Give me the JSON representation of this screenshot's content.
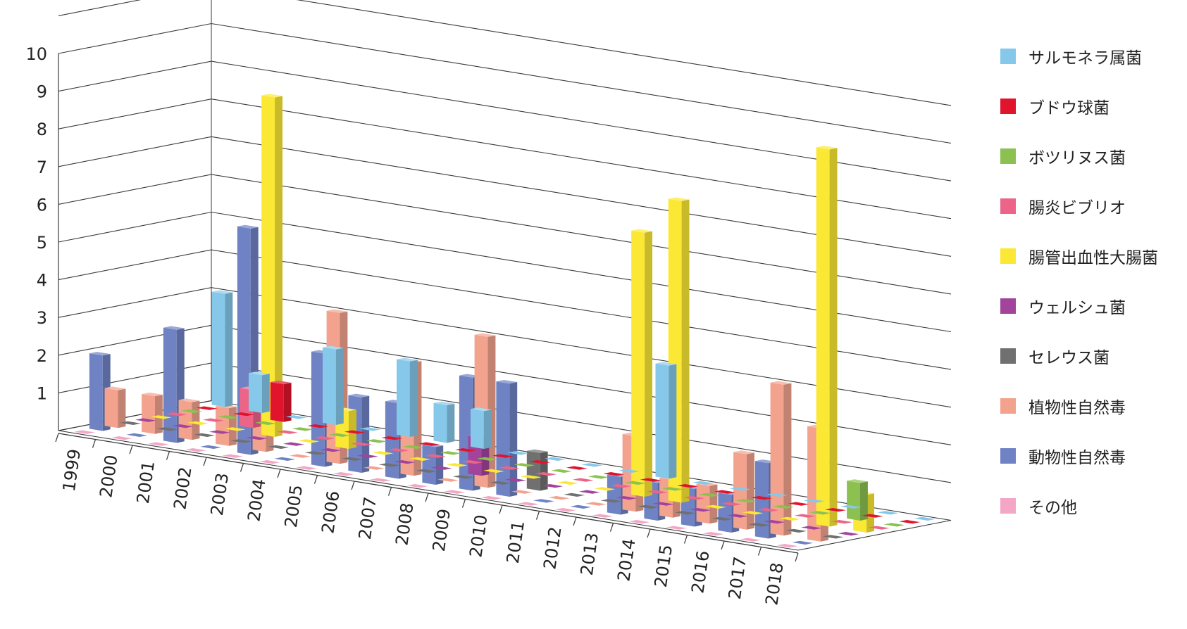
{
  "chart_data": {
    "type": "bar",
    "subtype": "3d-grouped-bar",
    "title": "",
    "xlabel": "",
    "ylabel": "",
    "ylim": [
      0,
      10
    ],
    "y_ticks": [
      "1",
      "2",
      "3",
      "4",
      "5",
      "6",
      "7",
      "8",
      "9",
      "10"
    ],
    "grid": true,
    "legend_position": "right",
    "categories": [
      "1999",
      "2000",
      "2001",
      "2002",
      "2003",
      "2004",
      "2005",
      "2006",
      "2007",
      "2008",
      "2009",
      "2010",
      "2011",
      "2012",
      "2013",
      "2014",
      "2015",
      "2016",
      "2017",
      "2018"
    ],
    "series": [
      {
        "name": "サルモネラ属菌",
        "color": "#85c8ea",
        "values": [
          3,
          1,
          0,
          2,
          0,
          2,
          1,
          1,
          0,
          0,
          0,
          0,
          3,
          0,
          0,
          0,
          0,
          0,
          0,
          0
        ]
      },
      {
        "name": "ブドウ球菌",
        "color": "#e0142d",
        "values": [
          0,
          0,
          1,
          0,
          0,
          0,
          0,
          0,
          0,
          0,
          0,
          0,
          0,
          0,
          0,
          0,
          0,
          0,
          0,
          0
        ]
      },
      {
        "name": "ボツリヌス菌",
        "color": "#8cc152",
        "values": [
          0,
          0,
          0,
          0,
          0,
          0,
          0,
          0,
          0,
          0,
          0,
          0,
          0,
          0,
          0,
          0,
          0,
          0,
          1,
          0
        ]
      },
      {
        "name": "腸炎ビブリオ",
        "color": "#ec6488",
        "values": [
          0,
          0,
          1,
          0,
          0,
          0,
          0,
          0,
          0,
          0,
          0,
          0,
          0,
          0,
          0,
          0,
          0,
          0,
          0,
          0
        ]
      },
      {
        "name": "腸管出血性大腸菌",
        "color": "#fbe834",
        "values": [
          0,
          0,
          0,
          9,
          0,
          1,
          0,
          0,
          0,
          0,
          0,
          0,
          0,
          7,
          8,
          0,
          0,
          0,
          10,
          1
        ]
      },
      {
        "name": "ウェルシュ菌",
        "color": "#a2449c",
        "values": [
          0,
          0,
          0,
          0,
          0,
          0,
          0,
          0,
          0,
          1,
          0,
          0,
          0,
          0,
          0,
          0,
          0,
          0,
          0,
          0
        ]
      },
      {
        "name": "セレウス菌",
        "color": "#707070",
        "values": [
          0,
          0,
          0,
          0,
          0,
          0,
          0,
          0,
          0,
          0,
          0,
          1,
          0,
          0,
          0,
          0,
          0,
          0,
          0,
          0
        ]
      },
      {
        "name": "植物性自然毒",
        "color": "#f3a28e",
        "values": [
          1,
          1,
          1,
          1,
          2,
          0,
          4,
          0,
          3,
          0,
          4,
          0,
          0,
          0,
          2,
          1,
          1,
          2,
          4,
          3
        ]
      },
      {
        "name": "動物性自然毒",
        "color": "#6f82c4",
        "values": [
          2,
          0,
          3,
          0,
          6,
          0,
          3,
          2,
          2,
          1,
          3,
          3,
          0,
          0,
          1,
          1,
          1,
          1,
          2,
          0
        ]
      },
      {
        "name": "その他",
        "color": "#f4a6c6",
        "values": [
          0,
          0,
          0,
          0,
          0,
          0,
          0,
          0,
          0,
          0,
          0,
          0,
          0,
          0,
          0,
          0,
          0,
          0,
          0,
          0
        ]
      }
    ]
  }
}
